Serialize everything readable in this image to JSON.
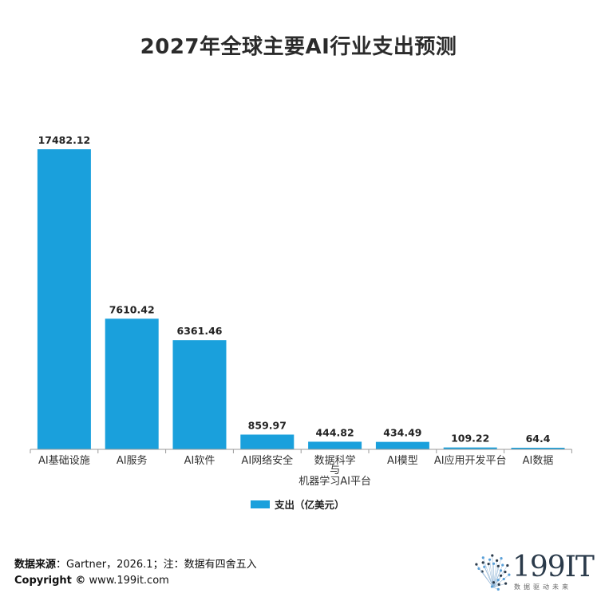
{
  "chart_data": {
    "type": "bar",
    "title": "2027年全球主要AI行业支出预测",
    "categories": [
      "AI基础设施",
      "AI服务",
      "AI软件",
      "AI网络安全",
      "数据科学与机器学习AI平台",
      "AI模型",
      "AI应用开发平台",
      "AI数据"
    ],
    "category_lines": [
      [
        "AI基础设施"
      ],
      [
        "AI服务"
      ],
      [
        "AI软件"
      ],
      [
        "AI网络安全"
      ],
      [
        "数据科学",
        "与",
        "机器学习AI平台"
      ],
      [
        "AI模型"
      ],
      [
        "AI应用开发平台"
      ],
      [
        "AI数据"
      ]
    ],
    "series": [
      {
        "name": "支出（亿美元）",
        "values": [
          17482.12,
          7610.42,
          6361.46,
          859.97,
          444.82,
          434.49,
          109.22,
          64.4
        ],
        "labels": [
          "17482.12",
          "7610.42",
          "6361.46",
          "859.97",
          "444.82",
          "434.49",
          "109.22",
          "64.4"
        ],
        "color": "#1aa0dc"
      }
    ],
    "ylim": [
      0,
      17482.12
    ],
    "grid": false,
    "legend_position": "bottom-center"
  },
  "footer": {
    "source_label": "数据来源",
    "source_text": "：Gartner，2026.1；注：数据有四舍五入",
    "copyright_label": "Copyright ©",
    "copyright_text": " www.199it.com"
  },
  "logo": {
    "text": "199IT",
    "tagline": "数据驱动未来"
  },
  "colors": {
    "bar": "#1aa0dc",
    "axis": "#9a9a9a"
  }
}
